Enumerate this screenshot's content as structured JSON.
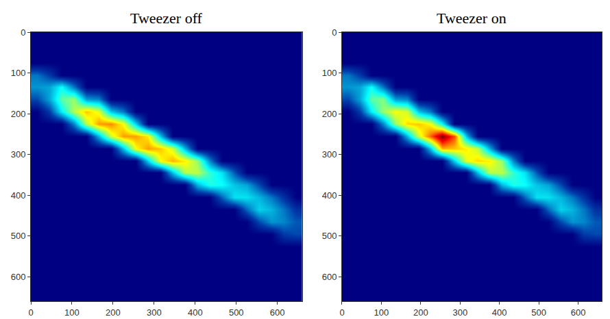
{
  "chart_data": [
    {
      "type": "heatmap",
      "title": "Tweezer off",
      "color": "Jet",
      "x": [
        15,
        45,
        75,
        105,
        135,
        165,
        195,
        225,
        255,
        285,
        315,
        345,
        375,
        405,
        435,
        465,
        495,
        525,
        555,
        585,
        615,
        645
      ],
      "y": [
        15,
        45,
        75,
        105,
        135,
        165,
        195,
        225,
        255,
        285,
        315,
        345,
        375,
        405,
        435,
        465,
        495,
        525,
        555,
        585,
        615,
        645
      ],
      "xlim": [
        0,
        660
      ],
      "ylim": [
        660,
        0
      ],
      "xticks": [
        0,
        100,
        200,
        300,
        400,
        500,
        600
      ],
      "yticks": [
        0,
        100,
        200,
        300,
        400,
        500,
        600
      ],
      "color_range": [
        0,
        100
      ],
      "grid": false,
      "cells": [
        [
          0,
          0,
          0,
          0,
          0,
          0,
          0,
          0,
          0,
          0,
          0,
          0,
          0,
          0,
          0,
          0,
          0,
          0,
          0,
          0,
          0,
          0
        ],
        [
          0,
          0,
          0,
          0,
          0,
          0,
          0,
          0,
          0,
          0,
          0,
          0,
          0,
          0,
          0,
          0,
          0,
          0,
          0,
          0,
          0,
          0
        ],
        [
          0,
          0,
          0,
          0,
          0,
          0,
          0,
          0,
          0,
          0,
          0,
          0,
          0,
          0,
          0,
          0,
          0,
          0,
          0,
          0,
          0,
          0
        ],
        [
          20,
          12,
          0,
          0,
          0,
          0,
          0,
          0,
          0,
          0,
          0,
          0,
          0,
          0,
          0,
          0,
          0,
          0,
          0,
          0,
          0,
          0
        ],
        [
          24,
          26,
          38,
          20,
          0,
          0,
          0,
          0,
          0,
          0,
          0,
          0,
          0,
          0,
          0,
          0,
          0,
          0,
          0,
          0,
          0,
          0
        ],
        [
          14,
          26,
          46,
          52,
          25,
          22,
          0,
          0,
          0,
          0,
          0,
          0,
          0,
          0,
          0,
          0,
          0,
          0,
          0,
          0,
          0,
          0
        ],
        [
          0,
          12,
          36,
          55,
          68,
          60,
          30,
          20,
          0,
          0,
          0,
          0,
          0,
          0,
          0,
          0,
          0,
          0,
          0,
          0,
          0,
          0
        ],
        [
          0,
          0,
          0,
          22,
          55,
          72,
          74,
          62,
          32,
          0,
          0,
          0,
          0,
          0,
          0,
          0,
          0,
          0,
          0,
          0,
          0,
          0
        ],
        [
          0,
          0,
          0,
          0,
          0,
          28,
          58,
          72,
          72,
          64,
          30,
          0,
          0,
          0,
          0,
          0,
          0,
          0,
          0,
          0,
          0,
          0
        ],
        [
          0,
          0,
          0,
          0,
          0,
          0,
          0,
          30,
          62,
          72,
          68,
          58,
          28,
          0,
          0,
          0,
          0,
          0,
          0,
          0,
          0,
          0
        ],
        [
          0,
          0,
          0,
          0,
          0,
          0,
          0,
          0,
          0,
          32,
          62,
          70,
          64,
          52,
          22,
          0,
          0,
          0,
          0,
          0,
          0,
          0
        ],
        [
          0,
          0,
          0,
          0,
          0,
          0,
          0,
          0,
          0,
          0,
          0,
          30,
          55,
          56,
          42,
          34,
          16,
          0,
          0,
          0,
          0,
          0
        ],
        [
          0,
          0,
          0,
          0,
          0,
          0,
          0,
          0,
          0,
          0,
          0,
          0,
          0,
          28,
          40,
          38,
          30,
          26,
          14,
          0,
          0,
          0
        ],
        [
          0,
          0,
          0,
          0,
          0,
          0,
          0,
          0,
          0,
          0,
          0,
          0,
          0,
          0,
          0,
          18,
          34,
          34,
          28,
          20,
          10,
          0
        ],
        [
          0,
          0,
          0,
          0,
          0,
          0,
          0,
          0,
          0,
          0,
          0,
          0,
          0,
          0,
          0,
          0,
          0,
          18,
          32,
          28,
          20,
          10
        ],
        [
          0,
          0,
          0,
          0,
          0,
          0,
          0,
          0,
          0,
          0,
          0,
          0,
          0,
          0,
          0,
          0,
          0,
          0,
          14,
          24,
          22,
          16
        ],
        [
          0,
          0,
          0,
          0,
          0,
          0,
          0,
          0,
          0,
          0,
          0,
          0,
          0,
          0,
          0,
          0,
          0,
          0,
          0,
          0,
          12,
          14
        ],
        [
          0,
          0,
          0,
          0,
          0,
          0,
          0,
          0,
          0,
          0,
          0,
          0,
          0,
          0,
          0,
          0,
          0,
          0,
          0,
          0,
          0,
          0
        ],
        [
          0,
          0,
          0,
          0,
          0,
          0,
          0,
          0,
          0,
          0,
          0,
          0,
          0,
          0,
          0,
          0,
          0,
          0,
          0,
          0,
          0,
          0
        ],
        [
          0,
          0,
          0,
          0,
          0,
          0,
          0,
          0,
          0,
          0,
          0,
          0,
          0,
          0,
          0,
          0,
          0,
          0,
          0,
          0,
          0,
          0
        ],
        [
          0,
          0,
          0,
          0,
          0,
          0,
          0,
          0,
          0,
          0,
          0,
          0,
          0,
          0,
          0,
          0,
          0,
          0,
          0,
          0,
          0,
          0
        ],
        [
          0,
          0,
          0,
          0,
          0,
          0,
          0,
          0,
          0,
          0,
          0,
          0,
          0,
          0,
          0,
          0,
          0,
          0,
          0,
          0,
          0,
          0
        ]
      ]
    },
    {
      "type": "heatmap",
      "title": "Tweezer on",
      "color": "Jet",
      "x": [
        15,
        45,
        75,
        105,
        135,
        165,
        195,
        225,
        255,
        285,
        315,
        345,
        375,
        405,
        435,
        465,
        495,
        525,
        555,
        585,
        615,
        645
      ],
      "y": [
        15,
        45,
        75,
        105,
        135,
        165,
        195,
        225,
        255,
        285,
        315,
        345,
        375,
        405,
        435,
        465,
        495,
        525,
        555,
        585,
        615,
        645
      ],
      "xlim": [
        0,
        660
      ],
      "ylim": [
        660,
        0
      ],
      "xticks": [
        0,
        100,
        200,
        300,
        400,
        500,
        600
      ],
      "yticks": [
        0,
        100,
        200,
        300,
        400,
        500,
        600
      ],
      "color_range": [
        0,
        100
      ],
      "grid": false,
      "cells": [
        [
          0,
          0,
          0,
          0,
          0,
          0,
          0,
          0,
          0,
          0,
          0,
          0,
          0,
          0,
          0,
          0,
          0,
          0,
          0,
          0,
          0,
          0
        ],
        [
          0,
          0,
          0,
          0,
          0,
          0,
          0,
          0,
          0,
          0,
          0,
          0,
          0,
          0,
          0,
          0,
          0,
          0,
          0,
          0,
          0,
          0
        ],
        [
          0,
          0,
          0,
          0,
          0,
          0,
          0,
          0,
          0,
          0,
          0,
          0,
          0,
          0,
          0,
          0,
          0,
          0,
          0,
          0,
          0,
          0
        ],
        [
          20,
          12,
          0,
          0,
          0,
          0,
          0,
          0,
          0,
          0,
          0,
          0,
          0,
          0,
          0,
          0,
          0,
          0,
          0,
          0,
          0,
          0
        ],
        [
          24,
          26,
          38,
          20,
          0,
          0,
          0,
          0,
          0,
          0,
          0,
          0,
          0,
          0,
          0,
          0,
          0,
          0,
          0,
          0,
          0,
          0
        ],
        [
          14,
          26,
          46,
          50,
          25,
          22,
          0,
          0,
          0,
          0,
          0,
          0,
          0,
          0,
          0,
          0,
          0,
          0,
          0,
          0,
          0,
          0
        ],
        [
          0,
          12,
          36,
          52,
          62,
          58,
          30,
          20,
          0,
          0,
          0,
          0,
          0,
          0,
          0,
          0,
          0,
          0,
          0,
          0,
          0,
          0
        ],
        [
          0,
          0,
          0,
          22,
          52,
          66,
          68,
          62,
          38,
          0,
          0,
          0,
          0,
          0,
          0,
          0,
          0,
          0,
          0,
          0,
          0,
          0
        ],
        [
          0,
          0,
          0,
          0,
          0,
          28,
          58,
          78,
          100,
          80,
          30,
          0,
          0,
          0,
          0,
          0,
          0,
          0,
          0,
          0,
          0,
          0
        ],
        [
          0,
          0,
          0,
          0,
          0,
          0,
          0,
          30,
          70,
          68,
          64,
          56,
          28,
          0,
          0,
          0,
          0,
          0,
          0,
          0,
          0,
          0
        ],
        [
          0,
          0,
          0,
          0,
          0,
          0,
          0,
          0,
          0,
          32,
          60,
          66,
          64,
          52,
          22,
          0,
          0,
          0,
          0,
          0,
          0,
          0
        ],
        [
          0,
          0,
          0,
          0,
          0,
          0,
          0,
          0,
          0,
          0,
          0,
          30,
          55,
          56,
          42,
          34,
          16,
          0,
          0,
          0,
          0,
          0
        ],
        [
          0,
          0,
          0,
          0,
          0,
          0,
          0,
          0,
          0,
          0,
          0,
          0,
          0,
          28,
          40,
          38,
          30,
          26,
          14,
          0,
          0,
          0
        ],
        [
          0,
          0,
          0,
          0,
          0,
          0,
          0,
          0,
          0,
          0,
          0,
          0,
          0,
          0,
          0,
          18,
          34,
          34,
          28,
          20,
          10,
          0
        ],
        [
          0,
          0,
          0,
          0,
          0,
          0,
          0,
          0,
          0,
          0,
          0,
          0,
          0,
          0,
          0,
          0,
          0,
          18,
          32,
          28,
          20,
          10
        ],
        [
          0,
          0,
          0,
          0,
          0,
          0,
          0,
          0,
          0,
          0,
          0,
          0,
          0,
          0,
          0,
          0,
          0,
          0,
          14,
          24,
          22,
          16
        ],
        [
          0,
          0,
          0,
          0,
          0,
          0,
          0,
          0,
          0,
          0,
          0,
          0,
          0,
          0,
          0,
          0,
          0,
          0,
          0,
          0,
          12,
          14
        ],
        [
          0,
          0,
          0,
          0,
          0,
          0,
          0,
          0,
          0,
          0,
          0,
          0,
          0,
          0,
          0,
          0,
          0,
          0,
          0,
          0,
          0,
          0
        ],
        [
          0,
          0,
          0,
          0,
          0,
          0,
          0,
          0,
          0,
          0,
          0,
          0,
          0,
          0,
          0,
          0,
          0,
          0,
          0,
          0,
          0,
          0
        ],
        [
          0,
          0,
          0,
          0,
          0,
          0,
          0,
          0,
          0,
          0,
          0,
          0,
          0,
          0,
          0,
          0,
          0,
          0,
          0,
          0,
          0,
          0
        ],
        [
          0,
          0,
          0,
          0,
          0,
          0,
          0,
          0,
          0,
          0,
          0,
          0,
          0,
          0,
          0,
          0,
          0,
          0,
          0,
          0,
          0,
          0
        ],
        [
          0,
          0,
          0,
          0,
          0,
          0,
          0,
          0,
          0,
          0,
          0,
          0,
          0,
          0,
          0,
          0,
          0,
          0,
          0,
          0,
          0,
          0
        ]
      ]
    }
  ]
}
